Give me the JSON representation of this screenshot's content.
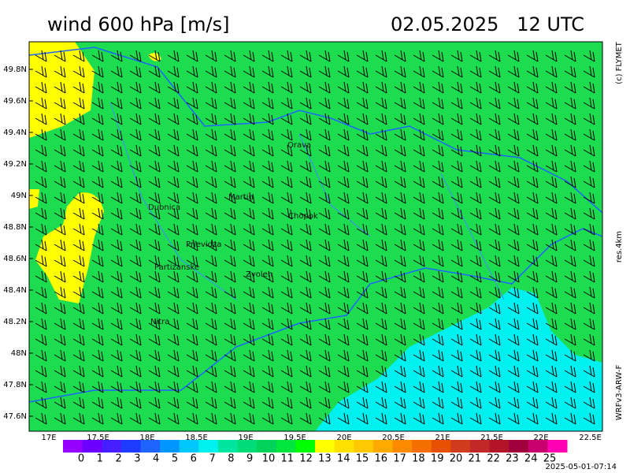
{
  "title": "wind 600 hPa [m/s]",
  "datetime": "02.05.2025   12 UTC",
  "credit": "(c) FLYMET",
  "resolution": "res.4km",
  "model": "WRFv3-ARW-F",
  "generated": "2025-05-01-07:14",
  "lat_labels": [
    "49.8N",
    "49.6N",
    "49.4N",
    "49.2N",
    "49N",
    "48.8N",
    "48.6N",
    "48.4N",
    "48.2N",
    "48N",
    "47.8N",
    "47.6N"
  ],
  "lon_labels": [
    "17E",
    "17.5E",
    "18E",
    "18.5E",
    "19E",
    "19.5E",
    "20E",
    "20.5E",
    "21E",
    "21.5E",
    "22E",
    "22.5E"
  ],
  "places": [
    "Orava",
    "Martin",
    "Dubnica",
    "Chopok",
    "Prievidza",
    "Partizanske",
    "Zvolen",
    "Nitra"
  ],
  "legend": {
    "labels": [
      0,
      1,
      2,
      3,
      4,
      5,
      6,
      7,
      8,
      9,
      10,
      11,
      12,
      13,
      14,
      15,
      16,
      17,
      18,
      19,
      20,
      21,
      22,
      23,
      24,
      25
    ],
    "colors": [
      "#9600ff",
      "#6e00ff",
      "#461eff",
      "#1e3cff",
      "#1e64ff",
      "#0096ff",
      "#00c8ff",
      "#00f0f0",
      "#00e6a0",
      "#00dc78",
      "#00d25a",
      "#00e63c",
      "#00ff00",
      "#ffff00",
      "#ffe100",
      "#ffc800",
      "#ffaa00",
      "#ff8c00",
      "#f56e00",
      "#e65000",
      "#d23c1e",
      "#c32828",
      "#b41428",
      "#a0003c",
      "#c8006e",
      "#ff00b4"
    ]
  }
}
